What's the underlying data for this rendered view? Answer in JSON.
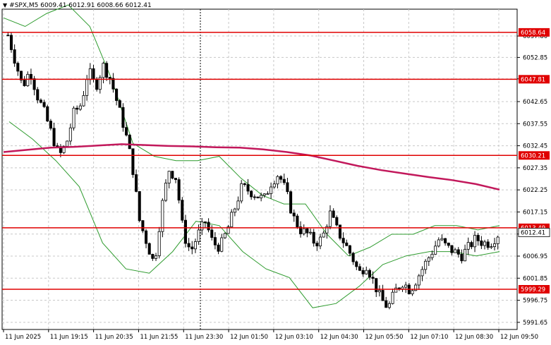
{
  "window": {
    "symbol_line": "#SPX,M5  6009.41 6012.91 6008.66 6012.41"
  },
  "colors": {
    "background": "#ffffff",
    "candle": "#000000",
    "bollinger": "#2e9b2e",
    "moving_average": "#c2185b",
    "level_line": "#e00000",
    "level_label_bg": "#e00000",
    "level_label_text": "#ffffff",
    "price_tag_bg": "#ffffff",
    "grid": "#c8c8c8",
    "crosshair": "#000000"
  },
  "chart_data": {
    "type": "candlestick",
    "timeframe": "M5",
    "ylim": [
      5990.0,
      6064.0
    ],
    "y_ticks": [
      "6057.80",
      "6052.85",
      "6047.90",
      "6042.65",
      "6037.55",
      "6032.45",
      "6027.35",
      "6022.25",
      "6017.15",
      "6012.05",
      "6006.95",
      "6001.85",
      "5996.75",
      "5991.65"
    ],
    "x_ticks": [
      "11 Jun 2025",
      "11 Jun 19:15",
      "11 Jun 20:35",
      "11 Jun 21:55",
      "11 Jun 23:30",
      "12 Jun 01:50",
      "12 Jun 03:10",
      "12 Jun 04:30",
      "12 Jun 05:50",
      "12 Jun 07:10",
      "12 Jun 08:30",
      "12 Jun 09:50"
    ],
    "levels": [
      "6058.64",
      "6047.81",
      "6030.21",
      "6013.49",
      "5999.29"
    ],
    "current_price": "6012.41",
    "close_path": [
      6058,
      6052,
      6046,
      6050,
      6044,
      6040,
      6035,
      6030,
      6033,
      6040,
      6042,
      6050,
      6046,
      6051,
      6048,
      6042,
      6036,
      6028,
      6015,
      6010,
      6005,
      6018,
      6027,
      6025,
      6012,
      6008,
      6012,
      6015,
      6010,
      6009,
      6013,
      6018,
      6023,
      6022,
      6021,
      6020,
      6024,
      6026,
      6022,
      6016,
      6013,
      6012,
      6010,
      6011,
      6017,
      6013,
      6010,
      6007,
      6003,
      6005,
      6001,
      5997,
      5995,
      5999,
      6001,
      5999,
      6002,
      6005,
      6008,
      6011,
      6009,
      6008,
      6007,
      6009,
      6011,
      6010,
      6010,
      6012
    ],
    "moving_average_path": [
      6031,
      6031.5,
      6032,
      6032.2,
      6032.5,
      6032.8,
      6032.6,
      6032.4,
      6032.3,
      6032.1,
      6032.0,
      6031.6,
      6031.0,
      6030.2,
      6029.0,
      6027.8,
      6026.8,
      6026.0,
      6025.2,
      6024.5,
      6023.6,
      6022.3
    ],
    "bollinger_upper_path": [
      6062,
      6060,
      6063,
      6065,
      6060,
      6048,
      6033,
      6030,
      6029,
      6029,
      6030,
      6025,
      6021,
      6019,
      6019,
      6012,
      6007,
      6009,
      6012,
      6012,
      6014,
      6014,
      6013,
      6014
    ],
    "bollinger_lower_path": [
      6038,
      6034,
      6029,
      6023,
      6010,
      6004,
      6003,
      6008,
      6015,
      6014,
      6008,
      6004,
      6002,
      5995,
      5996,
      6000,
      6005,
      6007,
      6008,
      6008,
      6007,
      6008
    ]
  }
}
